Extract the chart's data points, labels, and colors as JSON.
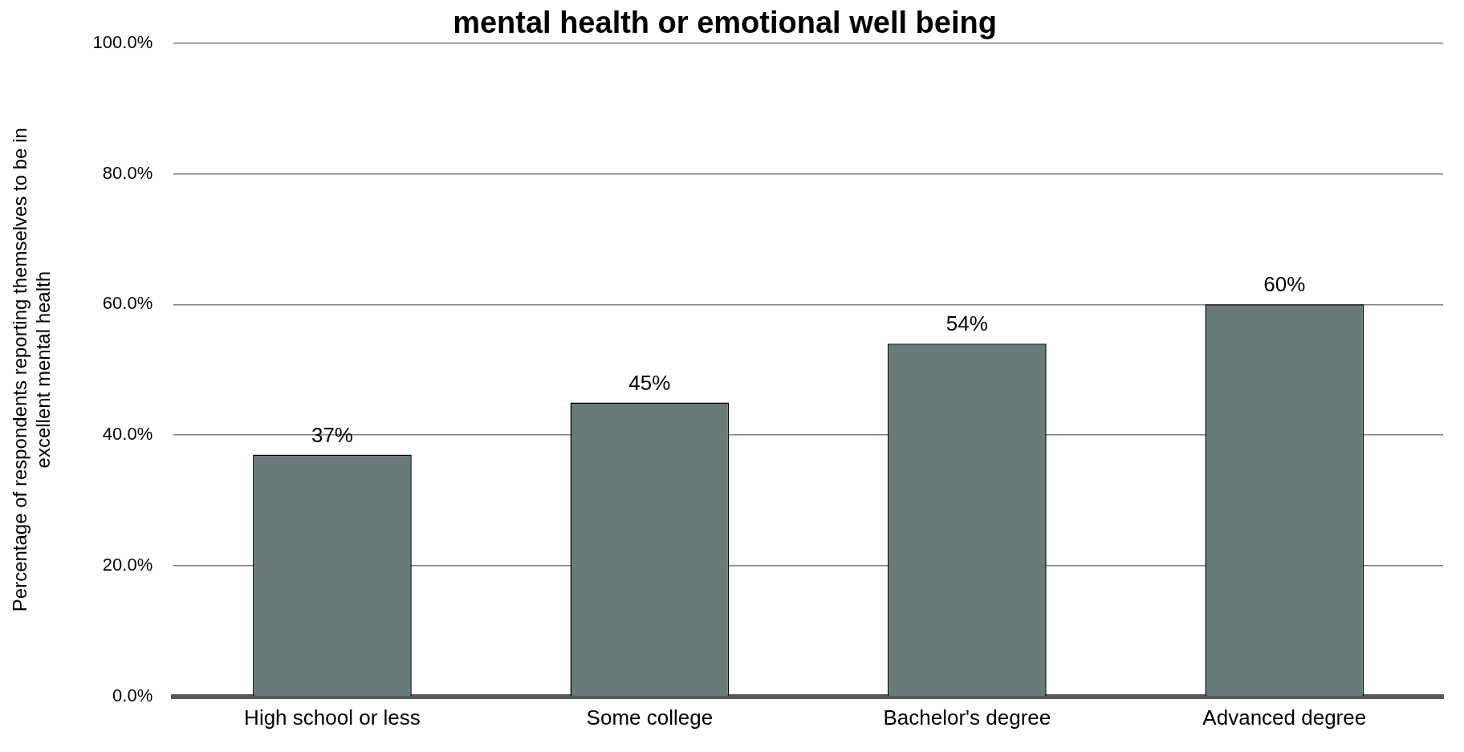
{
  "chart_data": {
    "type": "bar",
    "title": "mental health or emotional well being",
    "ylabel": "Percentage of respondents reporting themselves to be in\nexcellent mental health",
    "categories": [
      "High school or less",
      "Some college",
      "Bachelor's degree",
      "Advanced degree"
    ],
    "values": [
      37,
      45,
      54,
      60
    ],
    "color": "#687b79",
    "value_labels": [
      "37%",
      "45%",
      "54%",
      "60%"
    ],
    "ylim": [
      0,
      100
    ],
    "yticks": [
      {
        "value": 0,
        "label": "0.0%"
      },
      {
        "value": 20,
        "label": "20.0%"
      },
      {
        "value": 40,
        "label": "40.0%"
      },
      {
        "value": 60,
        "label": "60.0%"
      },
      {
        "value": 80,
        "label": "80.0%"
      },
      {
        "value": 100,
        "label": "100.0%"
      }
    ],
    "grid": "y",
    "legend": false
  }
}
